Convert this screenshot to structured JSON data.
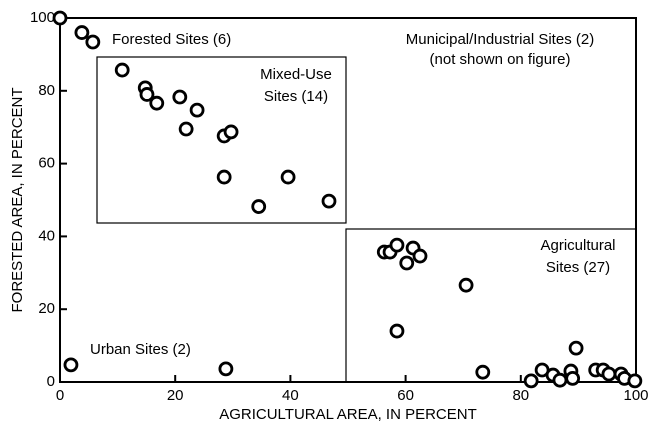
{
  "chart_data": {
    "type": "scatter",
    "x_label": "AGRICULTURAL AREA, IN PERCENT",
    "y_label": "FORESTED AREA, IN PERCENT",
    "xlim": [
      0,
      100
    ],
    "ylim": [
      0,
      100
    ],
    "xticks": [
      0,
      20,
      40,
      60,
      80,
      100
    ],
    "yticks": [
      0,
      20,
      40,
      60,
      80,
      100
    ],
    "grid": false,
    "annotations": [
      "Forested Sites (6)",
      "Mixed-Use",
      "Sites (14)",
      "Municipal/Industrial Sites (2)",
      "(not shown on figure)",
      "Agricultural",
      "Sites (27)",
      "Urban Sites (2)"
    ],
    "series": [
      {
        "color": "#000000",
        "x": [
          0,
          3.8,
          5.7,
          10.8,
          14.8,
          15.1,
          16.8,
          20.8,
          21.9,
          23.8,
          28.5,
          29.7,
          28.5,
          39.6,
          34.5,
          46.7,
          1.9,
          28.8,
          56.3,
          57.3,
          58.5,
          60.2,
          61.3,
          62.5,
          58.5,
          70.5,
          73.4,
          81.8,
          83.7,
          85.6,
          86.8,
          88.7,
          89,
          89.6,
          93,
          94.3,
          95.3,
          97.4,
          98,
          99.8
        ],
        "values": [
          100,
          96,
          93.4,
          85.7,
          80.8,
          79,
          76.6,
          78.3,
          69.5,
          74.7,
          67.6,
          68.7,
          56.3,
          56.3,
          48.2,
          49.7,
          4.7,
          3.6,
          35.7,
          35.7,
          37.6,
          32.7,
          36.8,
          34.6,
          14,
          26.6,
          2.7,
          0.3,
          3.3,
          1.9,
          0.5,
          3,
          1,
          9.3,
          3.3,
          3.3,
          2.2,
          2.2,
          1,
          0.3
        ]
      }
    ]
  }
}
